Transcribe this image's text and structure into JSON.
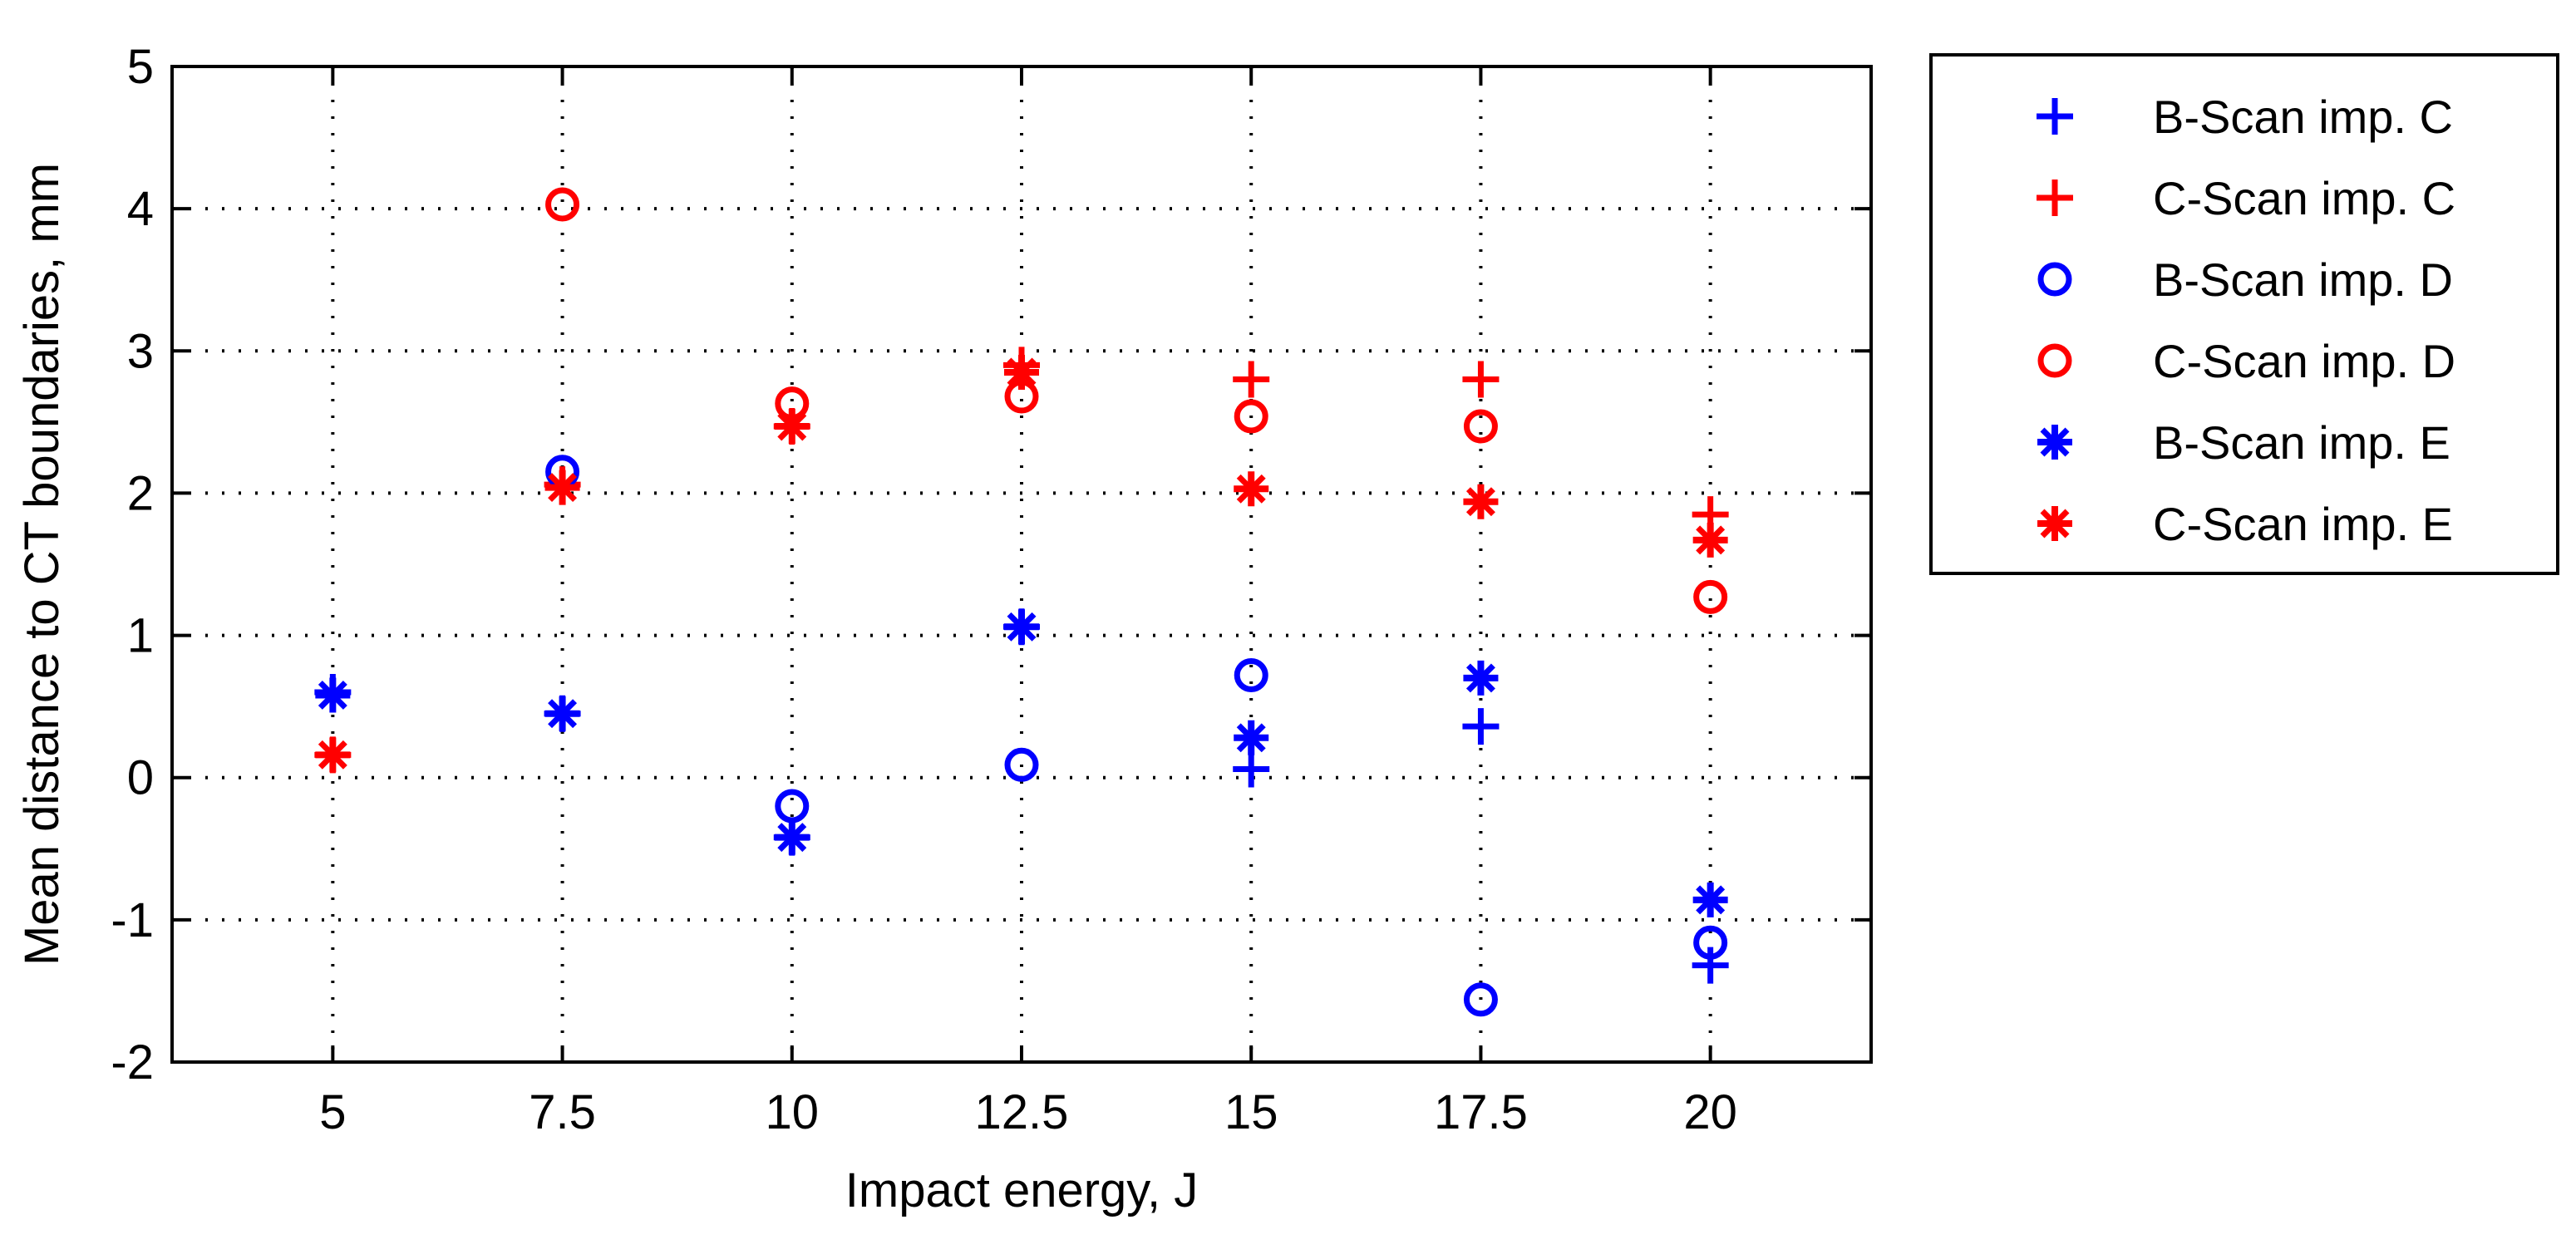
{
  "chart_data": {
    "type": "scatter",
    "title": "",
    "xlabel": "Impact energy, J",
    "ylabel": "Mean distance to CT boundaries, mm",
    "xlim": [
      3.25,
      21.75
    ],
    "ylim": [
      -2,
      5
    ],
    "xticks": [
      5,
      7.5,
      10,
      12.5,
      15,
      17.5,
      20
    ],
    "xtick_labels": [
      "5",
      "7.5",
      "10",
      "12.5",
      "15",
      "17.5",
      "20"
    ],
    "yticks": [
      -2,
      -1,
      0,
      1,
      2,
      3,
      4,
      5
    ],
    "ytick_labels": [
      "-2",
      "-1",
      "0",
      "1",
      "2",
      "3",
      "4",
      "5"
    ],
    "grid": true,
    "legend_position": "outside-top-right",
    "series": [
      {
        "name": "B-Scan imp. C",
        "color": "#0000ff",
        "marker": "plus",
        "points": [
          [
            5,
            0.6
          ],
          [
            7.5,
            0.45
          ],
          [
            10,
            -0.42
          ],
          [
            12.5,
            1.06
          ],
          [
            15,
            0.06
          ],
          [
            17.5,
            0.36
          ],
          [
            20,
            -1.32
          ]
        ]
      },
      {
        "name": "C-Scan imp. C",
        "color": "#ff0000",
        "marker": "plus",
        "points": [
          [
            5,
            0.16
          ],
          [
            7.5,
            2.06
          ],
          [
            10,
            2.47
          ],
          [
            12.5,
            2.9
          ],
          [
            15,
            2.8
          ],
          [
            17.5,
            2.8
          ],
          [
            20,
            1.85
          ]
        ]
      },
      {
        "name": "B-Scan imp. D",
        "color": "#0000ff",
        "marker": "circle",
        "points": [
          [
            7.5,
            2.15
          ],
          [
            10,
            -0.2
          ],
          [
            12.5,
            0.09
          ],
          [
            15,
            0.72
          ],
          [
            17.5,
            -1.56
          ],
          [
            20,
            -1.16
          ]
        ]
      },
      {
        "name": "C-Scan imp. D",
        "color": "#ff0000",
        "marker": "circle",
        "points": [
          [
            7.5,
            4.03
          ],
          [
            10,
            2.63
          ],
          [
            12.5,
            2.68
          ],
          [
            15,
            2.54
          ],
          [
            17.5,
            2.47
          ],
          [
            20,
            1.27
          ]
        ]
      },
      {
        "name": "B-Scan imp. E",
        "color": "#0000ff",
        "marker": "star",
        "points": [
          [
            5,
            0.58
          ],
          [
            7.5,
            0.45
          ],
          [
            10,
            -0.42
          ],
          [
            12.5,
            1.06
          ],
          [
            15,
            0.28
          ],
          [
            17.5,
            0.7
          ],
          [
            20,
            -0.86
          ]
        ]
      },
      {
        "name": "C-Scan imp. E",
        "color": "#ff0000",
        "marker": "star",
        "points": [
          [
            5,
            0.16
          ],
          [
            7.5,
            2.04
          ],
          [
            10,
            2.47
          ],
          [
            12.5,
            2.85
          ],
          [
            15,
            2.03
          ],
          [
            17.5,
            1.94
          ],
          [
            20,
            1.67
          ]
        ]
      }
    ]
  }
}
